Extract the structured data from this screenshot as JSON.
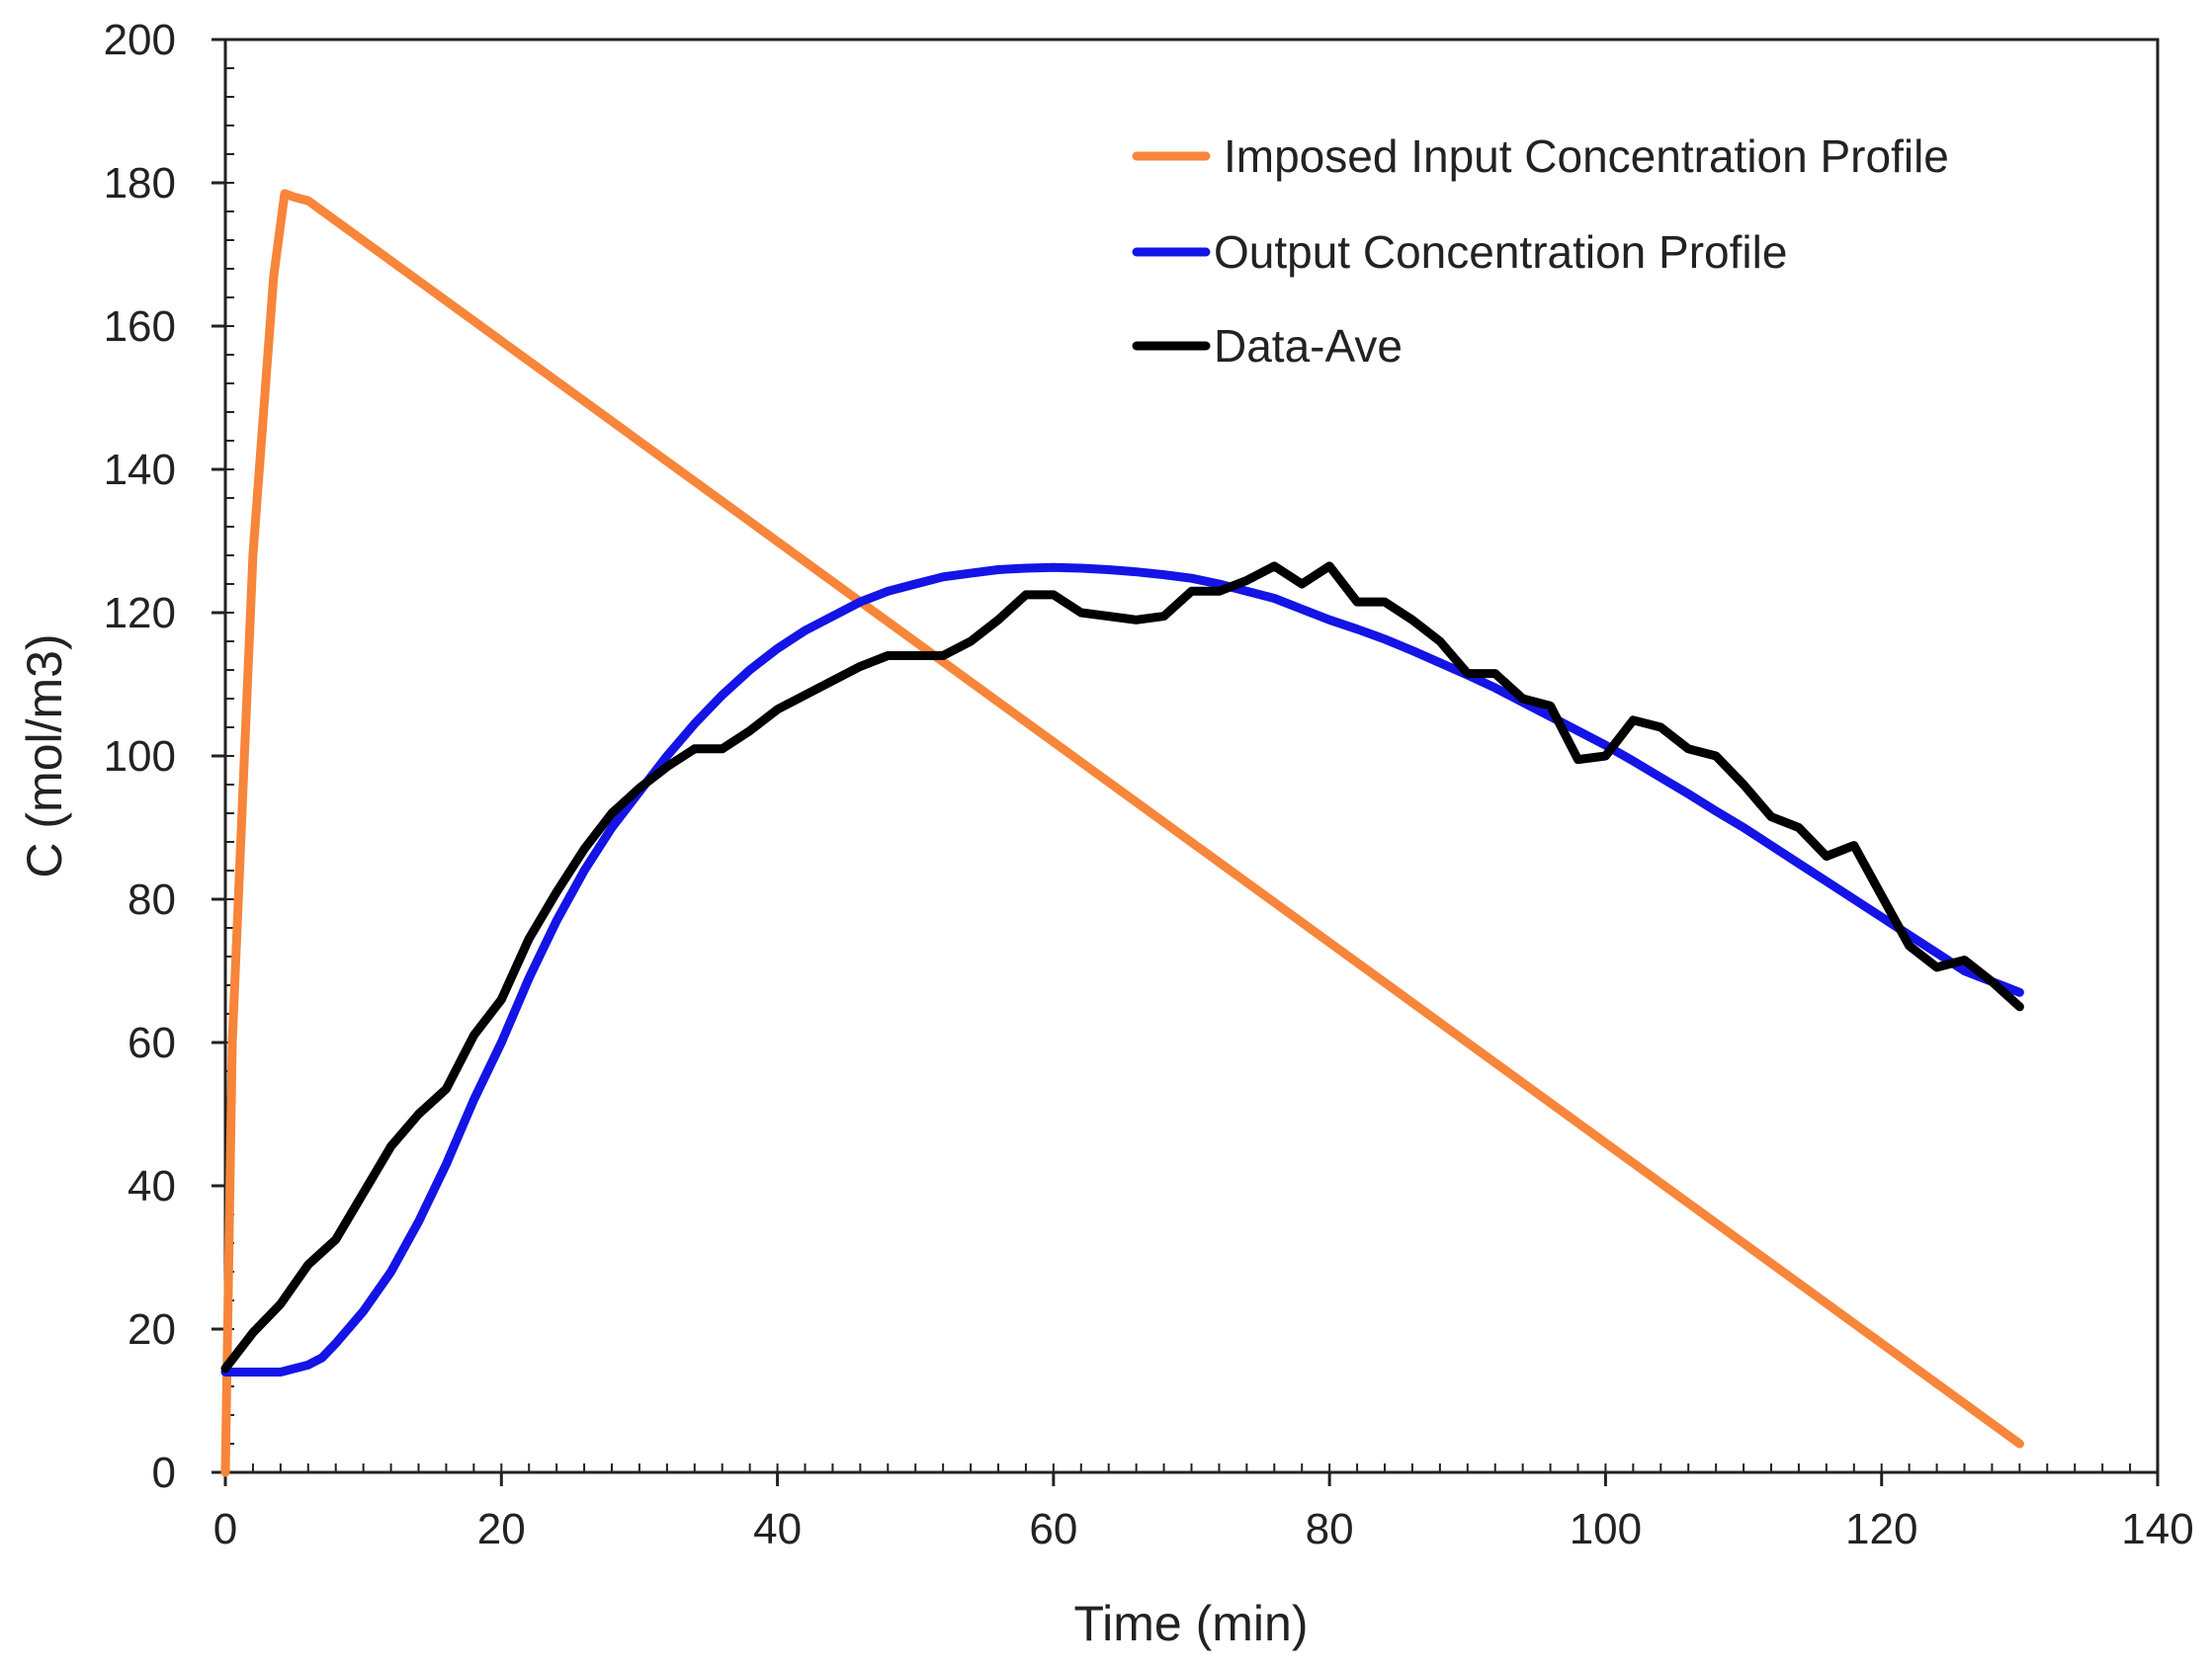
{
  "chart_data": {
    "type": "line",
    "title": "",
    "xlabel": "Time (min)",
    "ylabel": "C (mol/m3)",
    "xlim": [
      0,
      140
    ],
    "ylim": [
      0,
      200
    ],
    "x_ticks": [
      0,
      20,
      40,
      60,
      80,
      100,
      120,
      140
    ],
    "y_ticks": [
      0,
      20,
      40,
      60,
      80,
      100,
      120,
      140,
      160,
      180,
      200
    ],
    "grid": false,
    "legend_position": "top-right",
    "series": [
      {
        "name": "Imposed Input Concentration Profile",
        "color": "#f7853a",
        "points": [
          [
            0,
            0
          ],
          [
            0.5,
            60
          ],
          [
            2,
            128
          ],
          [
            3.5,
            167
          ],
          [
            4.3,
            178.5
          ],
          [
            5,
            178
          ],
          [
            6,
            177.5
          ],
          [
            130,
            4
          ]
        ]
      },
      {
        "name": "Output Concentration Profile",
        "color": "#1414e6",
        "points": [
          [
            0,
            14
          ],
          [
            2,
            14
          ],
          [
            4,
            14
          ],
          [
            6,
            15
          ],
          [
            7,
            16
          ],
          [
            8,
            18
          ],
          [
            10,
            22.5
          ],
          [
            12,
            28
          ],
          [
            14,
            35
          ],
          [
            16,
            43
          ],
          [
            18,
            52
          ],
          [
            20,
            60
          ],
          [
            22,
            69
          ],
          [
            24,
            77
          ],
          [
            26,
            84
          ],
          [
            28,
            90
          ],
          [
            30,
            95
          ],
          [
            32,
            100
          ],
          [
            34,
            104.5
          ],
          [
            36,
            108.5
          ],
          [
            38,
            112
          ],
          [
            40,
            115
          ],
          [
            42,
            117.5
          ],
          [
            44,
            119.5
          ],
          [
            46,
            121.5
          ],
          [
            48,
            123
          ],
          [
            50,
            124
          ],
          [
            52,
            125
          ],
          [
            54,
            125.5
          ],
          [
            56,
            126
          ],
          [
            58,
            126.2
          ],
          [
            60,
            126.3
          ],
          [
            62,
            126.2
          ],
          [
            64,
            126
          ],
          [
            66,
            125.7
          ],
          [
            68,
            125.3
          ],
          [
            70,
            124.8
          ],
          [
            72,
            124
          ],
          [
            74,
            123
          ],
          [
            76,
            122
          ],
          [
            78,
            120.5
          ],
          [
            80,
            119
          ],
          [
            82,
            117.7
          ],
          [
            84,
            116.3
          ],
          [
            86,
            114.7
          ],
          [
            88,
            113
          ],
          [
            90,
            111.3
          ],
          [
            92,
            109.5
          ],
          [
            94,
            107.5
          ],
          [
            96,
            105.5
          ],
          [
            98,
            103.5
          ],
          [
            100,
            101.5
          ],
          [
            102,
            99.3
          ],
          [
            104,
            97
          ],
          [
            106,
            94.7
          ],
          [
            108,
            92.3
          ],
          [
            110,
            90
          ],
          [
            112,
            87.5
          ],
          [
            114,
            85
          ],
          [
            116,
            82.5
          ],
          [
            118,
            80
          ],
          [
            120,
            77.5
          ],
          [
            122,
            75
          ],
          [
            124,
            72.5
          ],
          [
            126,
            70
          ],
          [
            128,
            68.5
          ],
          [
            130,
            67
          ]
        ]
      },
      {
        "name": "Data-Ave",
        "color": "#000000",
        "points": [
          [
            0,
            14.5
          ],
          [
            2,
            19.5
          ],
          [
            4,
            23.5
          ],
          [
            6,
            29
          ],
          [
            8,
            32.5
          ],
          [
            10,
            39
          ],
          [
            12,
            45.5
          ],
          [
            14,
            50
          ],
          [
            16,
            53.5
          ],
          [
            18,
            61
          ],
          [
            20,
            66
          ],
          [
            22,
            74.5
          ],
          [
            24,
            81
          ],
          [
            26,
            87
          ],
          [
            28,
            92
          ],
          [
            30,
            95.5
          ],
          [
            32,
            98.5
          ],
          [
            34,
            101
          ],
          [
            36,
            101
          ],
          [
            38,
            103.5
          ],
          [
            40,
            106.5
          ],
          [
            42,
            108.5
          ],
          [
            44,
            110.5
          ],
          [
            46,
            112.5
          ],
          [
            48,
            114
          ],
          [
            50,
            114
          ],
          [
            52,
            114
          ],
          [
            54,
            116
          ],
          [
            56,
            119
          ],
          [
            58,
            122.5
          ],
          [
            60,
            122.5
          ],
          [
            62,
            120
          ],
          [
            64,
            119.5
          ],
          [
            66,
            119
          ],
          [
            68,
            119.5
          ],
          [
            70,
            123
          ],
          [
            72,
            123
          ],
          [
            74,
            124.5
          ],
          [
            76,
            126.5
          ],
          [
            78,
            124
          ],
          [
            80,
            126.5
          ],
          [
            82,
            121.5
          ],
          [
            84,
            121.5
          ],
          [
            86,
            119
          ],
          [
            88,
            116
          ],
          [
            90,
            111.5
          ],
          [
            92,
            111.5
          ],
          [
            94,
            108
          ],
          [
            96,
            107
          ],
          [
            98,
            99.5
          ],
          [
            100,
            100
          ],
          [
            102,
            105
          ],
          [
            104,
            104
          ],
          [
            106,
            101
          ],
          [
            108,
            100
          ],
          [
            110,
            96
          ],
          [
            112,
            91.5
          ],
          [
            114,
            90
          ],
          [
            116,
            86
          ],
          [
            118,
            87.5
          ],
          [
            120,
            80.5
          ],
          [
            122,
            73.5
          ],
          [
            124,
            70.5
          ],
          [
            126,
            71.5
          ],
          [
            128,
            68.5
          ],
          [
            130,
            65
          ]
        ]
      }
    ]
  }
}
